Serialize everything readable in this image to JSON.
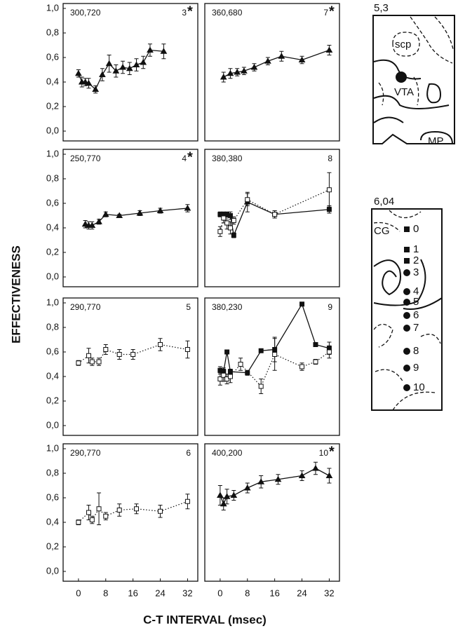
{
  "axis_labels": {
    "y": "EFFECTIVENESS",
    "x": "C-T INTERVAL (msec)"
  },
  "chart_data": [
    {
      "type": "line",
      "label": "300,720",
      "number": "3",
      "significance": "*",
      "xlim": [
        -4.5,
        35
      ],
      "ylim": [
        -0.08,
        1.04
      ],
      "yticks": [
        {
          "value": 0,
          "label": "0,0"
        },
        {
          "value": 0.2,
          "label": "0,2"
        },
        {
          "value": 0.4,
          "label": "0,4"
        },
        {
          "value": 0.6,
          "label": "0,6"
        },
        {
          "value": 0.8,
          "label": "0,8"
        },
        {
          "value": 1,
          "label": "1,0"
        }
      ],
      "series": [
        {
          "symbol": "triangle",
          "filled": true,
          "line": "solid",
          "color": "#111",
          "x": [
            0,
            1,
            2,
            3,
            5,
            7,
            9,
            11,
            13,
            15,
            17,
            19,
            21,
            25
          ],
          "values": [
            0.47,
            0.4,
            0.4,
            0.39,
            0.34,
            0.46,
            0.55,
            0.49,
            0.52,
            0.51,
            0.54,
            0.56,
            0.66,
            0.65
          ],
          "errors": [
            0.03,
            0.04,
            0.03,
            0.04,
            0.03,
            0.05,
            0.07,
            0.05,
            0.05,
            0.05,
            0.05,
            0.05,
            0.05,
            0.06
          ]
        }
      ]
    },
    {
      "type": "line",
      "label": "360,680",
      "number": "7",
      "significance": "*",
      "xlim": [
        -4.5,
        35
      ],
      "ylim": [
        -0.08,
        1.04
      ],
      "series": [
        {
          "symbol": "triangle",
          "filled": true,
          "line": "solid",
          "color": "#111",
          "x": [
            1,
            3,
            5,
            7,
            10,
            14,
            18,
            24,
            32
          ],
          "values": [
            0.44,
            0.47,
            0.48,
            0.49,
            0.52,
            0.57,
            0.61,
            0.58,
            0.66
          ],
          "errors": [
            0.04,
            0.04,
            0.03,
            0.03,
            0.03,
            0.03,
            0.04,
            0.03,
            0.04
          ]
        }
      ]
    },
    {
      "type": "line",
      "label": "250,770",
      "number": "4",
      "significance": "*",
      "xlim": [
        -4.5,
        35
      ],
      "ylim": [
        -0.08,
        1.04
      ],
      "yticks": [
        {
          "value": 0,
          "label": "0,0"
        },
        {
          "value": 0.2,
          "label": "0,2"
        },
        {
          "value": 0.4,
          "label": "0,4"
        },
        {
          "value": 0.6,
          "label": "0,6"
        },
        {
          "value": 0.8,
          "label": "0,8"
        },
        {
          "value": 1,
          "label": "1,0"
        }
      ],
      "series": [
        {
          "symbol": "triangle",
          "filled": true,
          "line": "solid",
          "color": "#111",
          "x": [
            2,
            3,
            4,
            6,
            8,
            12,
            18,
            24,
            32
          ],
          "values": [
            0.43,
            0.42,
            0.42,
            0.45,
            0.51,
            0.5,
            0.52,
            0.54,
            0.56
          ],
          "errors": [
            0.03,
            0.03,
            0.03,
            0.02,
            0.02,
            0.01,
            0.02,
            0.02,
            0.03
          ]
        }
      ]
    },
    {
      "type": "line",
      "label": "380,380",
      "number": "8",
      "xlim": [
        -4.5,
        35
      ],
      "ylim": [
        -0.08,
        1.04
      ],
      "series": [
        {
          "symbol": "square",
          "filled": true,
          "line": "solid",
          "color": "#111",
          "x": [
            0,
            1,
            2,
            3,
            4,
            8,
            16,
            32
          ],
          "values": [
            0.51,
            0.51,
            0.51,
            0.5,
            0.34,
            0.61,
            0.51,
            0.55
          ],
          "errors": [
            0.02,
            0.02,
            0.02,
            0.03,
            0.02,
            0.08,
            0.03,
            0.03
          ]
        },
        {
          "symbol": "square",
          "filled": false,
          "line": "dotted",
          "color": "#111",
          "x": [
            0,
            1,
            2,
            3,
            4,
            8,
            16,
            32
          ],
          "values": [
            0.37,
            0.48,
            0.44,
            0.4,
            0.46,
            0.63,
            0.51,
            0.71
          ],
          "errors": [
            0.04,
            0.04,
            0.05,
            0.05,
            0.03,
            0.05,
            0.03,
            0.14
          ]
        }
      ]
    },
    {
      "type": "line",
      "label": "290,770",
      "number": "5",
      "xlim": [
        -4.5,
        35
      ],
      "ylim": [
        -0.08,
        1.04
      ],
      "yticks": [
        {
          "value": 0,
          "label": "0,0"
        },
        {
          "value": 0.2,
          "label": "0,2"
        },
        {
          "value": 0.4,
          "label": "0,4"
        },
        {
          "value": 0.6,
          "label": "0,6"
        },
        {
          "value": 0.8,
          "label": "0,8"
        },
        {
          "value": 1,
          "label": "1,0"
        }
      ],
      "series": [
        {
          "symbol": "square",
          "filled": false,
          "line": "dotted",
          "color": "#111",
          "x": [
            0,
            3,
            4,
            6,
            8,
            12,
            16,
            24,
            32
          ],
          "values": [
            0.51,
            0.57,
            0.52,
            0.52,
            0.62,
            0.58,
            0.58,
            0.66,
            0.62
          ],
          "errors": [
            0.02,
            0.06,
            0.03,
            0.03,
            0.04,
            0.04,
            0.04,
            0.05,
            0.07
          ]
        }
      ]
    },
    {
      "type": "line",
      "label": "380,230",
      "number": "9",
      "xlim": [
        -4.5,
        35
      ],
      "ylim": [
        -0.08,
        1.04
      ],
      "series": [
        {
          "symbol": "square",
          "filled": true,
          "line": "solid",
          "color": "#111",
          "x": [
            0,
            1,
            2,
            3,
            8,
            12,
            16,
            24,
            28,
            32
          ],
          "values": [
            0.45,
            0.44,
            0.6,
            0.44,
            0.43,
            0.61,
            0.62,
            0.99,
            0.66,
            0.63
          ],
          "errors": [
            0.03,
            0.03,
            0.01,
            0.02,
            0.02,
            0.01,
            0.1,
            0.01,
            0.01,
            0.05
          ]
        },
        {
          "symbol": "square",
          "filled": false,
          "line": "dotted",
          "color": "#111",
          "x": [
            0,
            1,
            2,
            3,
            6,
            12,
            16,
            24,
            28,
            32
          ],
          "values": [
            0.38,
            0.41,
            0.38,
            0.4,
            0.5,
            0.32,
            0.58,
            0.48,
            0.52,
            0.6
          ],
          "errors": [
            0.05,
            0.05,
            0.04,
            0.05,
            0.05,
            0.06,
            0.13,
            0.03,
            0.02,
            0.05
          ]
        }
      ]
    },
    {
      "type": "line",
      "label": "290,770",
      "number": "6",
      "xlim": [
        -4.5,
        35
      ],
      "ylim": [
        -0.08,
        1.04
      ],
      "yticks": [
        {
          "value": 0,
          "label": "0,0"
        },
        {
          "value": 0.2,
          "label": "0,2"
        },
        {
          "value": 0.4,
          "label": "0,4"
        },
        {
          "value": 0.6,
          "label": "0,6"
        },
        {
          "value": 0.8,
          "label": "0,8"
        },
        {
          "value": 1,
          "label": "1,0"
        }
      ],
      "xticks": [
        0,
        8,
        16,
        24,
        32
      ],
      "series": [
        {
          "symbol": "square",
          "filled": false,
          "line": "dotted",
          "color": "#111",
          "x": [
            0,
            3,
            4,
            6,
            8,
            12,
            17,
            24,
            32
          ],
          "values": [
            0.4,
            0.48,
            0.42,
            0.51,
            0.45,
            0.5,
            0.51,
            0.49,
            0.57
          ],
          "errors": [
            0.02,
            0.06,
            0.03,
            0.13,
            0.03,
            0.05,
            0.04,
            0.05,
            0.06
          ]
        }
      ]
    },
    {
      "type": "line",
      "label": "400,200",
      "number": "10",
      "significance": "*",
      "xlim": [
        -4.5,
        35
      ],
      "ylim": [
        -0.08,
        1.04
      ],
      "xticks": [
        0,
        8,
        16,
        24,
        32
      ],
      "series": [
        {
          "symbol": "triangle",
          "filled": true,
          "line": "solid",
          "color": "#111",
          "x": [
            0,
            1,
            2,
            4,
            8,
            12,
            17,
            24,
            28,
            32
          ],
          "values": [
            0.62,
            0.55,
            0.61,
            0.62,
            0.68,
            0.73,
            0.75,
            0.78,
            0.84,
            0.78
          ],
          "errors": [
            0.08,
            0.05,
            0.06,
            0.04,
            0.04,
            0.05,
            0.04,
            0.04,
            0.05,
            0.06
          ]
        }
      ]
    }
  ],
  "diagrams": [
    {
      "label": "5,3",
      "regions": [
        "scp",
        "VTA",
        "MP"
      ]
    },
    {
      "label": "6,04",
      "regions": [
        "CG"
      ],
      "sites": [
        {
          "label": "0",
          "marker": "square"
        },
        {
          "label": "1",
          "marker": "square"
        },
        {
          "label": "2",
          "marker": "square"
        },
        {
          "label": "3",
          "marker": "circle"
        },
        {
          "label": "4",
          "marker": "circle"
        },
        {
          "label": "5",
          "marker": "circle"
        },
        {
          "label": "6",
          "marker": "circle"
        },
        {
          "label": "7",
          "marker": "circle"
        },
        {
          "label": "8",
          "marker": "circle"
        },
        {
          "label": "9",
          "marker": "circle"
        },
        {
          "label": "10",
          "marker": "circle"
        }
      ]
    }
  ]
}
